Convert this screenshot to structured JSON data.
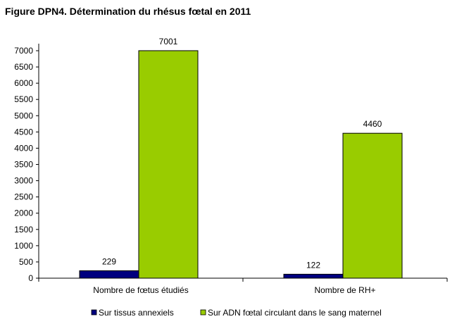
{
  "chart_data": {
    "type": "bar",
    "title": "Figure DPN4. Détermination du rhésus fœtal en 2011",
    "categories": [
      "Nombre de fœtus étudiés",
      "Nombre de RH+"
    ],
    "series": [
      {
        "name": "Sur tissus annexiels",
        "values": [
          229,
          122
        ],
        "color": "#00007f"
      },
      {
        "name": "Sur ADN fœtal circulant dans le sang maternel",
        "values": [
          7001,
          4460
        ],
        "color": "#99cc00"
      }
    ],
    "ylim": [
      0,
      7000
    ],
    "ytick_step": 500,
    "xlabel": "",
    "ylabel": "",
    "grid": false,
    "legend_position": "bottom"
  }
}
